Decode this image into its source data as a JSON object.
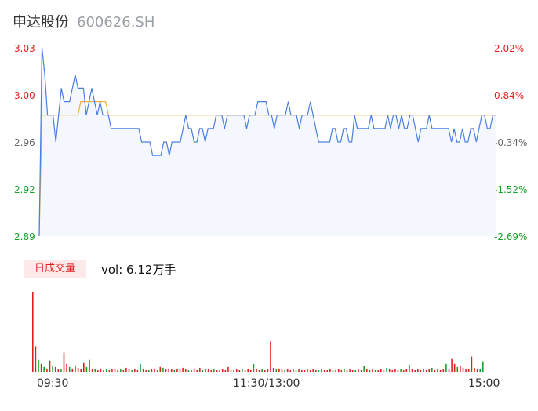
{
  "header": {
    "name": "申达股份",
    "code": "600626.SH"
  },
  "volume_badge": "日成交量",
  "volume_text": "vol: 6.12万手",
  "colors": {
    "up": "#e02020",
    "down": "#1a9f2a",
    "neutral": "#666666",
    "price_line": "#4a7fe0",
    "avg_line": "#f0b030",
    "area_fill": "#f4f7fd"
  },
  "chart_data": [
    {
      "type": "line",
      "title": "",
      "x_labels": [
        "09:30",
        "11:30/13:00",
        "15:00"
      ],
      "y_ticks_left": [
        "3.03",
        "3.00",
        "2.96",
        "2.92",
        "2.89"
      ],
      "y_ticks_right": [
        "2.02%",
        "0.84%",
        "-0.34%",
        "-1.52%",
        "-2.69%"
      ],
      "ylim": [
        2.89,
        3.03
      ],
      "series": [
        {
          "role": "price",
          "values": [
            2.89,
            3.03,
            3.01,
            2.98,
            2.98,
            2.98,
            2.96,
            2.98,
            3.0,
            2.99,
            2.99,
            2.99,
            3.0,
            3.01,
            3.0,
            3.0,
            3.0,
            2.98,
            2.99,
            3.0,
            2.99,
            2.98,
            2.99,
            2.98,
            2.98,
            2.98,
            2.97,
            2.97,
            2.97,
            2.97,
            2.97,
            2.97,
            2.97,
            2.97,
            2.97,
            2.97,
            2.97,
            2.96,
            2.96,
            2.96,
            2.96,
            2.95,
            2.95,
            2.95,
            2.95,
            2.96,
            2.96,
            2.95,
            2.96,
            2.96,
            2.96,
            2.96,
            2.97,
            2.98,
            2.97,
            2.97,
            2.96,
            2.96,
            2.97,
            2.97,
            2.96,
            2.97,
            2.97,
            2.97,
            2.98,
            2.98,
            2.98,
            2.97,
            2.98,
            2.98,
            2.98,
            2.98,
            2.98,
            2.98,
            2.98,
            2.97,
            2.98,
            2.98,
            2.98,
            2.99,
            2.99,
            2.99,
            2.99,
            2.98,
            2.98,
            2.97,
            2.98,
            2.98,
            2.98,
            2.98,
            2.99,
            2.98,
            2.98,
            2.98,
            2.97,
            2.98,
            2.98,
            2.98,
            2.99,
            2.98,
            2.97,
            2.96,
            2.96,
            2.96,
            2.96,
            2.96,
            2.97,
            2.97,
            2.96,
            2.96,
            2.97,
            2.97,
            2.96,
            2.96,
            2.98,
            2.97,
            2.97,
            2.97,
            2.97,
            2.97,
            2.98,
            2.97,
            2.97,
            2.97,
            2.97,
            2.97,
            2.98,
            2.97,
            2.98,
            2.98,
            2.97,
            2.98,
            2.97,
            2.97,
            2.98,
            2.98,
            2.97,
            2.96,
            2.97,
            2.97,
            2.97,
            2.98,
            2.97,
            2.97,
            2.97,
            2.97,
            2.97,
            2.97,
            2.97,
            2.96,
            2.97,
            2.96,
            2.96,
            2.97,
            2.96,
            2.96,
            2.97,
            2.97,
            2.96,
            2.97,
            2.98,
            2.98,
            2.97,
            2.97,
            2.98,
            2.98
          ]
        },
        {
          "role": "average",
          "values": [
            2.89,
            2.98,
            2.98,
            2.98,
            2.98,
            2.98,
            2.98,
            2.98,
            2.98,
            2.98,
            2.98,
            2.98,
            2.98,
            2.98,
            2.98,
            2.99,
            2.99,
            2.99,
            2.99,
            2.99,
            2.99,
            2.99,
            2.99,
            2.99,
            2.99,
            2.98,
            2.98,
            2.98,
            2.98,
            2.98,
            2.98,
            2.98,
            2.98,
            2.98,
            2.98,
            2.98,
            2.98,
            2.98,
            2.98,
            2.98,
            2.98,
            2.98,
            2.98,
            2.98,
            2.98,
            2.98,
            2.98,
            2.98,
            2.98,
            2.98,
            2.98,
            2.98,
            2.98,
            2.98,
            2.98,
            2.98,
            2.98,
            2.98,
            2.98,
            2.98,
            2.98,
            2.98,
            2.98,
            2.98,
            2.98,
            2.98,
            2.98,
            2.98,
            2.98,
            2.98,
            2.98,
            2.98,
            2.98,
            2.98,
            2.98,
            2.98,
            2.98,
            2.98,
            2.98,
            2.98,
            2.98,
            2.98,
            2.98,
            2.98,
            2.98,
            2.98,
            2.98,
            2.98,
            2.98,
            2.98,
            2.98,
            2.98,
            2.98,
            2.98,
            2.98,
            2.98,
            2.98,
            2.98,
            2.98,
            2.98,
            2.98,
            2.98,
            2.98,
            2.98,
            2.98,
            2.98,
            2.98,
            2.98,
            2.98,
            2.98,
            2.98,
            2.98,
            2.98,
            2.98,
            2.98,
            2.98,
            2.98,
            2.98,
            2.98,
            2.98,
            2.98,
            2.98,
            2.98,
            2.98,
            2.98,
            2.98,
            2.98,
            2.98,
            2.98,
            2.98,
            2.98,
            2.98,
            2.98,
            2.98,
            2.98,
            2.98,
            2.98,
            2.98,
            2.98,
            2.98,
            2.98,
            2.98,
            2.98,
            2.98,
            2.98,
            2.98,
            2.98,
            2.98,
            2.98,
            2.98,
            2.98,
            2.98,
            2.98,
            2.98,
            2.98,
            2.98,
            2.98,
            2.98,
            2.98,
            2.98,
            2.98,
            2.98,
            2.98,
            2.98,
            2.98,
            2.98
          ]
        }
      ]
    },
    {
      "type": "bar",
      "title": "",
      "volume_max": 100,
      "volume": [
        [
          100,
          "up"
        ],
        [
          32,
          "up"
        ],
        [
          15,
          "down"
        ],
        [
          10,
          "up"
        ],
        [
          6,
          "down"
        ],
        [
          4,
          "up"
        ],
        [
          14,
          "up"
        ],
        [
          8,
          "down"
        ],
        [
          6,
          "up"
        ],
        [
          3,
          "up"
        ],
        [
          3,
          "down"
        ],
        [
          24,
          "up"
        ],
        [
          10,
          "up"
        ],
        [
          6,
          "down"
        ],
        [
          4,
          "up"
        ],
        [
          8,
          "down"
        ],
        [
          5,
          "up"
        ],
        [
          3,
          "up"
        ],
        [
          11,
          "up"
        ],
        [
          6,
          "down"
        ],
        [
          15,
          "up"
        ],
        [
          4,
          "up"
        ],
        [
          3,
          "down"
        ],
        [
          2,
          "up"
        ],
        [
          4,
          "up"
        ],
        [
          2,
          "up"
        ],
        [
          3,
          "down"
        ],
        [
          2,
          "up"
        ],
        [
          3,
          "up"
        ],
        [
          4,
          "up"
        ],
        [
          2,
          "up"
        ],
        [
          3,
          "down"
        ],
        [
          2,
          "up"
        ],
        [
          5,
          "up"
        ],
        [
          3,
          "up"
        ],
        [
          2,
          "down"
        ],
        [
          3,
          "up"
        ],
        [
          2,
          "up"
        ],
        [
          10,
          "down"
        ],
        [
          3,
          "up"
        ],
        [
          2,
          "up"
        ],
        [
          2,
          "down"
        ],
        [
          3,
          "up"
        ],
        [
          4,
          "up"
        ],
        [
          2,
          "down"
        ],
        [
          6,
          "up"
        ],
        [
          5,
          "down"
        ],
        [
          3,
          "up"
        ],
        [
          4,
          "up"
        ],
        [
          3,
          "up"
        ],
        [
          2,
          "down"
        ],
        [
          3,
          "up"
        ],
        [
          3,
          "up"
        ],
        [
          5,
          "up"
        ],
        [
          3,
          "up"
        ],
        [
          2,
          "down"
        ],
        [
          2,
          "up"
        ],
        [
          3,
          "up"
        ],
        [
          2,
          "up"
        ],
        [
          5,
          "up"
        ],
        [
          2,
          "down"
        ],
        [
          3,
          "up"
        ],
        [
          4,
          "up"
        ],
        [
          2,
          "up"
        ],
        [
          3,
          "down"
        ],
        [
          2,
          "up"
        ],
        [
          2,
          "up"
        ],
        [
          3,
          "up"
        ],
        [
          2,
          "up"
        ],
        [
          6,
          "up"
        ],
        [
          2,
          "down"
        ],
        [
          2,
          "up"
        ],
        [
          3,
          "up"
        ],
        [
          2,
          "up"
        ],
        [
          3,
          "down"
        ],
        [
          2,
          "up"
        ],
        [
          3,
          "up"
        ],
        [
          2,
          "up"
        ],
        [
          10,
          "down"
        ],
        [
          4,
          "up"
        ],
        [
          2,
          "up"
        ],
        [
          3,
          "down"
        ],
        [
          2,
          "up"
        ],
        [
          3,
          "up"
        ],
        [
          38,
          "up"
        ],
        [
          5,
          "up"
        ],
        [
          3,
          "down"
        ],
        [
          4,
          "up"
        ],
        [
          3,
          "up"
        ],
        [
          2,
          "down"
        ],
        [
          3,
          "up"
        ],
        [
          2,
          "up"
        ],
        [
          3,
          "up"
        ],
        [
          2,
          "down"
        ],
        [
          3,
          "up"
        ],
        [
          2,
          "up"
        ],
        [
          2,
          "up"
        ],
        [
          3,
          "down"
        ],
        [
          2,
          "up"
        ],
        [
          3,
          "up"
        ],
        [
          2,
          "up"
        ],
        [
          2,
          "down"
        ],
        [
          3,
          "up"
        ],
        [
          2,
          "up"
        ],
        [
          2,
          "up"
        ],
        [
          3,
          "up"
        ],
        [
          2,
          "down"
        ],
        [
          2,
          "up"
        ],
        [
          3,
          "up"
        ],
        [
          2,
          "up"
        ],
        [
          4,
          "down"
        ],
        [
          2,
          "up"
        ],
        [
          3,
          "up"
        ],
        [
          2,
          "up"
        ],
        [
          2,
          "down"
        ],
        [
          3,
          "up"
        ],
        [
          2,
          "up"
        ],
        [
          7,
          "down"
        ],
        [
          3,
          "up"
        ],
        [
          2,
          "up"
        ],
        [
          3,
          "up"
        ],
        [
          2,
          "down"
        ],
        [
          2,
          "up"
        ],
        [
          3,
          "up"
        ],
        [
          2,
          "up"
        ],
        [
          5,
          "down"
        ],
        [
          3,
          "up"
        ],
        [
          2,
          "up"
        ],
        [
          3,
          "up"
        ],
        [
          2,
          "up"
        ],
        [
          3,
          "down"
        ],
        [
          2,
          "up"
        ],
        [
          3,
          "up"
        ],
        [
          9,
          "down"
        ],
        [
          3,
          "up"
        ],
        [
          2,
          "up"
        ],
        [
          3,
          "up"
        ],
        [
          2,
          "up"
        ],
        [
          3,
          "down"
        ],
        [
          2,
          "up"
        ],
        [
          3,
          "up"
        ],
        [
          5,
          "down"
        ],
        [
          2,
          "up"
        ],
        [
          3,
          "up"
        ],
        [
          2,
          "up"
        ],
        [
          3,
          "up"
        ],
        [
          10,
          "down"
        ],
        [
          4,
          "up"
        ],
        [
          16,
          "up"
        ],
        [
          10,
          "up"
        ],
        [
          6,
          "down"
        ],
        [
          8,
          "up"
        ],
        [
          5,
          "up"
        ],
        [
          3,
          "up"
        ],
        [
          4,
          "up"
        ],
        [
          19,
          "up"
        ],
        [
          5,
          "up"
        ],
        [
          4,
          "up"
        ],
        [
          3,
          "down"
        ],
        [
          13,
          "down"
        ]
      ]
    }
  ]
}
